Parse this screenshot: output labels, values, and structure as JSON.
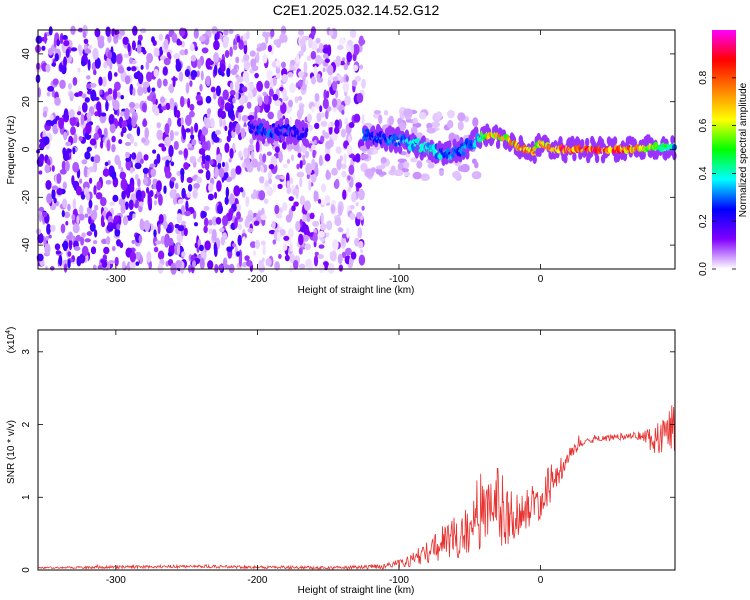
{
  "title": "C2E1.2025.032.14.52.G12",
  "chart_data": [
    {
      "type": "heatmap",
      "xlabel": "Height of straight line (km)",
      "ylabel": "Frequency (Hz)",
      "xlim": [
        -355,
        95
      ],
      "ylim": [
        -50,
        50
      ],
      "xticks": [
        -300,
        -200,
        -100,
        0
      ],
      "yticks": [
        -40,
        -20,
        0,
        20,
        40
      ],
      "colorbar": {
        "label": "Normalized spectral amplitude",
        "range": [
          0,
          1
        ],
        "ticks": [
          "0.0",
          "0.2",
          "0.4",
          "0.6",
          "0.8"
        ],
        "tick_values": [
          0,
          0.2,
          0.4,
          0.6,
          0.8
        ],
        "colormap": [
          "#ffffff",
          "#8000ff",
          "#0000ff",
          "#00ffff",
          "#00ff00",
          "#ffff00",
          "#ff8000",
          "#ff0000",
          "#ff00ff"
        ]
      },
      "regions": [
        {
          "x": [
            -355,
            -210
          ],
          "intensity": "noise",
          "note": "dense scattered purple noise across full frequency range"
        },
        {
          "x": [
            -210,
            -125
          ],
          "intensity": "weak noise with signal near 5-10 Hz"
        },
        {
          "x": [
            -125,
            95
          ],
          "intensity": "clear signal band"
        }
      ],
      "ridge": {
        "x": [
          -205,
          -190,
          -170,
          -160,
          -125,
          -110,
          -95,
          -80,
          -65,
          -55,
          -45,
          -35,
          -25,
          -15,
          -5,
          0,
          10,
          20,
          40,
          60,
          80,
          95
        ],
        "y": [
          9,
          8,
          7,
          6,
          6,
          5,
          3,
          0,
          -2,
          0,
          4,
          6,
          5,
          1,
          -1,
          3,
          0,
          0,
          0,
          0,
          1,
          1
        ],
        "amplitude": [
          0.25,
          0.3,
          0.25,
          0.2,
          0.3,
          0.3,
          0.35,
          0.4,
          0.35,
          0.3,
          0.35,
          0.75,
          0.7,
          0.8,
          0.75,
          0.65,
          0.85,
          0.9,
          0.9,
          0.85,
          0.6,
          0.4
        ]
      }
    },
    {
      "type": "line",
      "xlabel": "Height of straight line (km)",
      "ylabel": "SNR (10 * v/v)",
      "yscale_label": "(x10",
      "yscale_exp": "4",
      "yscale_close": ")",
      "xlim": [
        -355,
        95
      ],
      "ylim": [
        0,
        3.3
      ],
      "xticks": [
        -300,
        -200,
        -100,
        0
      ],
      "yticks": [
        0,
        1,
        2,
        3
      ],
      "series": [
        {
          "color": "#e8312f",
          "x": [
            -355,
            -300,
            -250,
            -200,
            -150,
            -120,
            -100,
            -90,
            -80,
            -70,
            -60,
            -50,
            -40,
            -30,
            -20,
            -10,
            0,
            10,
            20,
            30,
            40,
            50,
            60,
            70,
            80,
            90,
            95
          ],
          "y": [
            0.03,
            0.04,
            0.05,
            0.04,
            0.03,
            0.04,
            0.08,
            0.15,
            0.25,
            0.35,
            0.45,
            0.55,
            0.75,
            0.85,
            0.75,
            0.8,
            1.0,
            1.25,
            1.6,
            1.75,
            1.8,
            1.82,
            1.84,
            1.85,
            1.8,
            1.9,
            2.1
          ],
          "noise": [
            0.01,
            0.02,
            0.02,
            0.02,
            0.02,
            0.03,
            0.06,
            0.1,
            0.15,
            0.25,
            0.3,
            0.35,
            0.5,
            0.6,
            0.35,
            0.3,
            0.3,
            0.25,
            0.1,
            0.05,
            0.04,
            0.04,
            0.05,
            0.06,
            0.2,
            0.3,
            0.5
          ]
        }
      ]
    }
  ]
}
